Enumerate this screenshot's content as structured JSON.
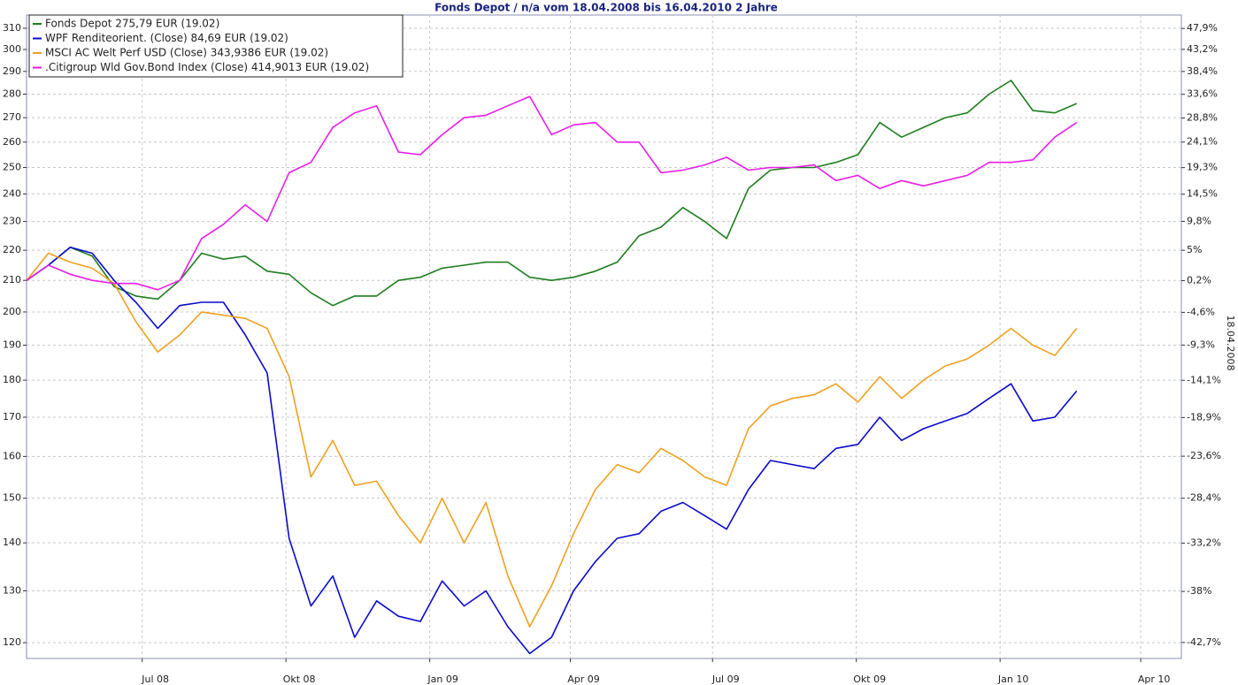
{
  "chart_data": {
    "type": "line",
    "title": "Fonds Depot / n/a vom 18.04.2008 bis 16.04.2010 2 Jahre",
    "y2_label": "18.04.2008",
    "log_scale": true,
    "grid": true,
    "legend": "upper left",
    "x": [
      "2008-04-18",
      "2008-05-02",
      "2008-05-16",
      "2008-05-30",
      "2008-06-13",
      "2008-06-27",
      "2008-07-11",
      "2008-07-25",
      "2008-08-08",
      "2008-08-22",
      "2008-09-05",
      "2008-09-19",
      "2008-10-03",
      "2008-10-17",
      "2008-10-31",
      "2008-11-14",
      "2008-11-28",
      "2008-12-12",
      "2008-12-26",
      "2009-01-09",
      "2009-01-23",
      "2009-02-06",
      "2009-02-20",
      "2009-03-06",
      "2009-03-20",
      "2009-04-03",
      "2009-04-17",
      "2009-05-01",
      "2009-05-15",
      "2009-05-29",
      "2009-06-12",
      "2009-06-26",
      "2009-07-10",
      "2009-07-24",
      "2009-08-07",
      "2009-08-21",
      "2009-09-04",
      "2009-09-18",
      "2009-10-02",
      "2009-10-16",
      "2009-10-30",
      "2009-11-13",
      "2009-11-27",
      "2009-12-11",
      "2009-12-25",
      "2010-01-08",
      "2010-01-22",
      "2010-02-05",
      "2010-02-19"
    ],
    "xlim": [
      "2008-04-18",
      "2010-04-27"
    ],
    "xticks": [
      {
        "value": "2008-07-01",
        "label": "Jul 08"
      },
      {
        "value": "2008-10-01",
        "label": "Okt 08"
      },
      {
        "value": "2009-01-01",
        "label": "Jan 09"
      },
      {
        "value": "2009-04-01",
        "label": "Apr 09"
      },
      {
        "value": "2009-07-01",
        "label": "Jul 09"
      },
      {
        "value": "2009-10-01",
        "label": "Okt 09"
      },
      {
        "value": "2010-01-01",
        "label": "Jan 10"
      },
      {
        "value": "2010-04-01",
        "label": "Apr 10"
      }
    ],
    "ylim": [
      117.1,
      316.4
    ],
    "yticks": [
      120,
      130,
      140,
      150,
      160,
      170,
      180,
      190,
      200,
      210,
      220,
      230,
      240,
      250,
      260,
      270,
      280,
      290,
      300,
      310
    ],
    "y2lim": [
      -44.1,
      51.0
    ],
    "y2ticks": [
      {
        "value": 47.9,
        "label": "47,9%"
      },
      {
        "value": 43.2,
        "label": "43,2%"
      },
      {
        "value": 38.4,
        "label": "38,4%"
      },
      {
        "value": 33.6,
        "label": "33,6%"
      },
      {
        "value": 28.8,
        "label": "28,8%"
      },
      {
        "value": 24.1,
        "label": "24,1%"
      },
      {
        "value": 19.3,
        "label": "19,3%"
      },
      {
        "value": 14.5,
        "label": "14,5%"
      },
      {
        "value": 9.8,
        "label": "9,8%"
      },
      {
        "value": 5,
        "label": "5%"
      },
      {
        "value": 0.2,
        "label": "0,2%"
      },
      {
        "value": -4.6,
        "label": "-4,6%"
      },
      {
        "value": -9.3,
        "label": "-9,3%"
      },
      {
        "value": -14.1,
        "label": "-14,1%"
      },
      {
        "value": -18.9,
        "label": "-18,9%"
      },
      {
        "value": -23.6,
        "label": "-23,6%"
      },
      {
        "value": -28.4,
        "label": "-28,4%"
      },
      {
        "value": -33.2,
        "label": "-33,2%"
      },
      {
        "value": -38,
        "label": "-38%"
      },
      {
        "value": -42.7,
        "label": "-42,7%"
      }
    ],
    "series": [
      {
        "name": "Fonds Depot 275,79 EUR (19.02)",
        "color": "#1e7d1e",
        "values": [
          210,
          215,
          221,
          218,
          208,
          205,
          204,
          210,
          219,
          217,
          218,
          213,
          212,
          206,
          202,
          205,
          205,
          210,
          211,
          214,
          215,
          216,
          216,
          211,
          210,
          211,
          213,
          216,
          225,
          228,
          235,
          230,
          224,
          242,
          249,
          250,
          250,
          252,
          255,
          268,
          262,
          266,
          270,
          272,
          280,
          286,
          273,
          272,
          276
        ]
      },
      {
        "name": "WPF Renditeorient. (Close) 84,69 EUR (19.02)",
        "color": "#0a0acc",
        "values": [
          210,
          215,
          221,
          219,
          210,
          203,
          195,
          202,
          203,
          203,
          193,
          182,
          141,
          127,
          133,
          121,
          128,
          125,
          124,
          132,
          127,
          130,
          123,
          118,
          121,
          130,
          136,
          141,
          142,
          147,
          149,
          146,
          143,
          152,
          159,
          158,
          157,
          162,
          163,
          170,
          164,
          167,
          169,
          171,
          175,
          179,
          169,
          170,
          177
        ]
      },
      {
        "name": "MSCI AC Welt Perf USD (Close) 343,9386 EUR (19.02)",
        "color": "#f0a020",
        "values": [
          210,
          219,
          216,
          214,
          209,
          197,
          188,
          193,
          200,
          199,
          198,
          195,
          181,
          155,
          164,
          153,
          154,
          146,
          140,
          150,
          140,
          149,
          133,
          123,
          131,
          142,
          152,
          158,
          156,
          162,
          159,
          155,
          153,
          167,
          173,
          175,
          176,
          179,
          174,
          181,
          175,
          180,
          184,
          186,
          190,
          195,
          190,
          187,
          195
        ]
      },
      {
        "name": ".Citigroup Wld Gov.Bond Index (Close) 414,9013 EUR (19.02)",
        "color": "#e81ee8",
        "values": [
          210,
          215,
          212,
          210,
          209,
          209,
          207,
          210,
          224,
          229,
          236,
          230,
          248,
          252,
          266,
          272,
          275,
          256,
          255,
          263,
          270,
          271,
          275,
          279,
          263,
          267,
          268,
          260,
          260,
          248,
          249,
          251,
          254,
          249,
          250,
          250,
          251,
          245,
          247,
          242,
          245,
          243,
          245,
          247,
          252,
          252,
          253,
          262,
          268
        ]
      }
    ]
  }
}
